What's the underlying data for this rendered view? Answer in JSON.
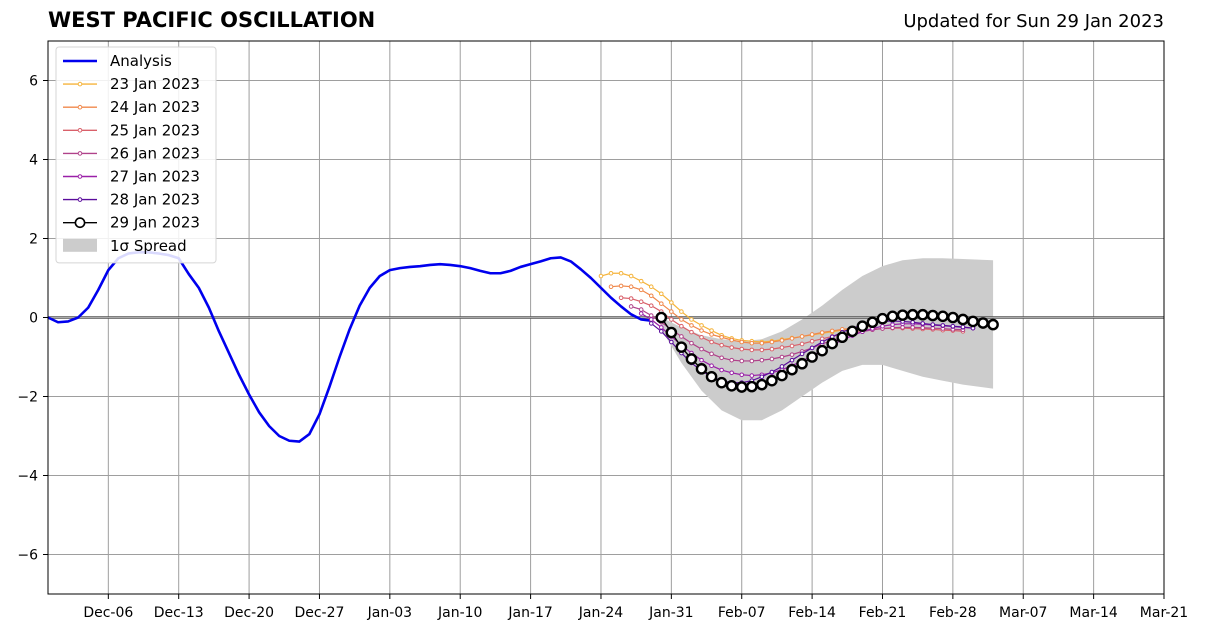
{
  "chart_data": {
    "type": "line",
    "title": "WEST PACIFIC OSCILLATION",
    "subtitle": "Updated for Sun 29 Jan 2023",
    "xlabel": "",
    "ylabel": "",
    "xlim": [
      "2022-11-30",
      "2023-03-21"
    ],
    "ylim": [
      -7,
      7
    ],
    "yticks": [
      -6,
      -4,
      -2,
      0,
      2,
      4,
      6
    ],
    "ytick_labels": [
      "−6",
      "−4",
      "−2",
      "0",
      "2",
      "4",
      "6"
    ],
    "xticks": [
      "2022-12-06",
      "2022-12-13",
      "2022-12-20",
      "2022-12-27",
      "2023-01-03",
      "2023-01-10",
      "2023-01-17",
      "2023-01-24",
      "2023-01-31",
      "2023-02-07",
      "2023-02-14",
      "2023-02-21",
      "2023-02-28",
      "2023-03-07",
      "2023-03-14",
      "2023-03-21"
    ],
    "xtick_labels": [
      "Dec-06",
      "Dec-13",
      "Dec-20",
      "Dec-27",
      "Jan-03",
      "Jan-10",
      "Jan-17",
      "Jan-24",
      "Jan-31",
      "Feb-07",
      "Feb-14",
      "Feb-21",
      "Feb-28",
      "Mar-07",
      "Mar-14",
      "Mar-21"
    ],
    "grid": true,
    "legend_position": "top-left",
    "zero_line": true,
    "series": [
      {
        "name": "Analysis",
        "color": "#0000ee",
        "style": "line-thick",
        "x": [
          "2022-11-30",
          "2022-12-01",
          "2022-12-02",
          "2022-12-03",
          "2022-12-04",
          "2022-12-05",
          "2022-12-06",
          "2022-12-07",
          "2022-12-08",
          "2022-12-09",
          "2022-12-10",
          "2022-12-11",
          "2022-12-12",
          "2022-12-13",
          "2022-12-14",
          "2022-12-15",
          "2022-12-16",
          "2022-12-17",
          "2022-12-18",
          "2022-12-19",
          "2022-12-20",
          "2022-12-21",
          "2022-12-22",
          "2022-12-23",
          "2022-12-24",
          "2022-12-25",
          "2022-12-26",
          "2022-12-27",
          "2022-12-28",
          "2022-12-29",
          "2022-12-30",
          "2022-12-31",
          "2023-01-01",
          "2023-01-02",
          "2023-01-03",
          "2023-01-04",
          "2023-01-05",
          "2023-01-06",
          "2023-01-07",
          "2023-01-08",
          "2023-01-09",
          "2023-01-10",
          "2023-01-11",
          "2023-01-12",
          "2023-01-13",
          "2023-01-14",
          "2023-01-15",
          "2023-01-16",
          "2023-01-17",
          "2023-01-18",
          "2023-01-19",
          "2023-01-20",
          "2023-01-21",
          "2023-01-22",
          "2023-01-23",
          "2023-01-24",
          "2023-01-25",
          "2023-01-26",
          "2023-01-27",
          "2023-01-28",
          "2023-01-29"
        ],
        "values": [
          0.0,
          -0.12,
          -0.1,
          0.0,
          0.25,
          0.7,
          1.2,
          1.5,
          1.62,
          1.65,
          1.65,
          1.62,
          1.58,
          1.5,
          1.1,
          0.75,
          0.25,
          -0.35,
          -0.9,
          -1.45,
          -1.95,
          -2.4,
          -2.75,
          -3.0,
          -3.12,
          -3.14,
          -2.95,
          -2.45,
          -1.75,
          -1.0,
          -0.3,
          0.3,
          0.75,
          1.05,
          1.2,
          1.25,
          1.28,
          1.3,
          1.33,
          1.35,
          1.33,
          1.3,
          1.25,
          1.18,
          1.12,
          1.12,
          1.18,
          1.28,
          1.35,
          1.42,
          1.5,
          1.52,
          1.42,
          1.22,
          1.0,
          0.75,
          0.5,
          0.28,
          0.08,
          -0.05,
          -0.08
        ]
      },
      {
        "name": "23 Jan 2023",
        "color": "#f5b43c",
        "style": "line-dots",
        "x": [
          "2023-01-24",
          "2023-01-25",
          "2023-01-26",
          "2023-01-27",
          "2023-01-28",
          "2023-01-29",
          "2023-01-30",
          "2023-01-31",
          "2023-02-01",
          "2023-02-02",
          "2023-02-03",
          "2023-02-04",
          "2023-02-05",
          "2023-02-06",
          "2023-02-07",
          "2023-02-08",
          "2023-02-09",
          "2023-02-10",
          "2023-02-11",
          "2023-02-12",
          "2023-02-13",
          "2023-02-14",
          "2023-02-15",
          "2023-02-16",
          "2023-02-17",
          "2023-02-18",
          "2023-02-19"
        ],
        "values": [
          1.05,
          1.12,
          1.12,
          1.05,
          0.92,
          0.78,
          0.6,
          0.38,
          0.15,
          -0.05,
          -0.2,
          -0.33,
          -0.45,
          -0.53,
          -0.58,
          -0.6,
          -0.62,
          -0.6,
          -0.56,
          -0.52,
          -0.48,
          -0.44,
          -0.4,
          -0.36,
          -0.32,
          -0.28,
          -0.25
        ]
      },
      {
        "name": "24 Jan 2023",
        "color": "#f0884b",
        "style": "line-dots",
        "x": [
          "2023-01-25",
          "2023-01-26",
          "2023-01-27",
          "2023-01-28",
          "2023-01-29",
          "2023-01-30",
          "2023-01-31",
          "2023-02-01",
          "2023-02-02",
          "2023-02-03",
          "2023-02-04",
          "2023-02-05",
          "2023-02-06",
          "2023-02-07",
          "2023-02-08",
          "2023-02-09",
          "2023-02-10",
          "2023-02-11",
          "2023-02-12",
          "2023-02-13",
          "2023-02-14",
          "2023-02-15",
          "2023-02-16",
          "2023-02-17",
          "2023-02-18",
          "2023-02-19",
          "2023-02-20"
        ],
        "values": [
          0.78,
          0.8,
          0.78,
          0.7,
          0.55,
          0.35,
          0.15,
          -0.05,
          -0.2,
          -0.33,
          -0.43,
          -0.5,
          -0.57,
          -0.62,
          -0.65,
          -0.65,
          -0.62,
          -0.58,
          -0.53,
          -0.48,
          -0.43,
          -0.38,
          -0.34,
          -0.3,
          -0.27,
          -0.24,
          -0.22
        ]
      },
      {
        "name": "25 Jan 2023",
        "color": "#d9606a",
        "style": "line-dots",
        "x": [
          "2023-01-26",
          "2023-01-27",
          "2023-01-28",
          "2023-01-29",
          "2023-01-30",
          "2023-01-31",
          "2023-02-01",
          "2023-02-02",
          "2023-02-03",
          "2023-02-04",
          "2023-02-05",
          "2023-02-06",
          "2023-02-07",
          "2023-02-08",
          "2023-02-09",
          "2023-02-10",
          "2023-02-11",
          "2023-02-12",
          "2023-02-13",
          "2023-02-14",
          "2023-02-15",
          "2023-02-16",
          "2023-02-17",
          "2023-02-18",
          "2023-02-19",
          "2023-02-20",
          "2023-02-21",
          "2023-02-22",
          "2023-02-23",
          "2023-02-24",
          "2023-02-25",
          "2023-02-26",
          "2023-02-27",
          "2023-02-28",
          "2023-03-01"
        ],
        "values": [
          0.5,
          0.48,
          0.4,
          0.3,
          0.15,
          -0.05,
          -0.22,
          -0.37,
          -0.5,
          -0.62,
          -0.7,
          -0.76,
          -0.8,
          -0.82,
          -0.82,
          -0.8,
          -0.76,
          -0.72,
          -0.67,
          -0.6,
          -0.54,
          -0.48,
          -0.42,
          -0.37,
          -0.33,
          -0.3,
          -0.28,
          -0.27,
          -0.27,
          -0.28,
          -0.29,
          -0.3,
          -0.32,
          -0.33,
          -0.35
        ]
      },
      {
        "name": "26 Jan 2023",
        "color": "#b0428a",
        "style": "line-dots",
        "x": [
          "2023-01-27",
          "2023-01-28",
          "2023-01-29",
          "2023-01-30",
          "2023-01-31",
          "2023-02-01",
          "2023-02-02",
          "2023-02-03",
          "2023-02-04",
          "2023-02-05",
          "2023-02-06",
          "2023-02-07",
          "2023-02-08",
          "2023-02-09",
          "2023-02-10",
          "2023-02-11",
          "2023-02-12",
          "2023-02-13",
          "2023-02-14",
          "2023-02-15",
          "2023-02-16",
          "2023-02-17",
          "2023-02-18",
          "2023-02-19",
          "2023-02-20",
          "2023-02-21",
          "2023-02-22",
          "2023-02-23",
          "2023-02-24",
          "2023-02-25",
          "2023-02-26",
          "2023-02-27",
          "2023-02-28",
          "2023-03-01"
        ],
        "values": [
          0.28,
          0.2,
          0.05,
          -0.12,
          -0.3,
          -0.48,
          -0.65,
          -0.8,
          -0.92,
          -1.02,
          -1.08,
          -1.1,
          -1.1,
          -1.08,
          -1.05,
          -1.0,
          -0.94,
          -0.86,
          -0.77,
          -0.67,
          -0.58,
          -0.5,
          -0.43,
          -0.36,
          -0.31,
          -0.28,
          -0.26,
          -0.25,
          -0.25,
          -0.26,
          -0.27,
          -0.28,
          -0.3,
          -0.31
        ]
      },
      {
        "name": "27 Jan 2023",
        "color": "#9a20a8",
        "style": "line-dots",
        "x": [
          "2023-01-28",
          "2023-01-29",
          "2023-01-30",
          "2023-01-31",
          "2023-02-01",
          "2023-02-02",
          "2023-02-03",
          "2023-02-04",
          "2023-02-05",
          "2023-02-06",
          "2023-02-07",
          "2023-02-08",
          "2023-02-09",
          "2023-02-10",
          "2023-02-11",
          "2023-02-12",
          "2023-02-13",
          "2023-02-14",
          "2023-02-15",
          "2023-02-16",
          "2023-02-17",
          "2023-02-18",
          "2023-02-19",
          "2023-02-20",
          "2023-02-21",
          "2023-02-22",
          "2023-02-23",
          "2023-02-24",
          "2023-02-25",
          "2023-02-26",
          "2023-02-27",
          "2023-02-28",
          "2023-03-01",
          "2023-03-02"
        ],
        "values": [
          0.1,
          -0.05,
          -0.25,
          -0.48,
          -0.7,
          -0.9,
          -1.08,
          -1.22,
          -1.33,
          -1.4,
          -1.45,
          -1.47,
          -1.45,
          -1.4,
          -1.32,
          -1.22,
          -1.1,
          -0.97,
          -0.83,
          -0.7,
          -0.57,
          -0.46,
          -0.36,
          -0.28,
          -0.22,
          -0.18,
          -0.16,
          -0.16,
          -0.17,
          -0.19,
          -0.21,
          -0.23,
          -0.25,
          -0.27
        ]
      },
      {
        "name": "28 Jan 2023",
        "color": "#5a0c9c",
        "style": "line-dots",
        "x": [
          "2023-01-29",
          "2023-01-30",
          "2023-01-31",
          "2023-02-01",
          "2023-02-02",
          "2023-02-03",
          "2023-02-04",
          "2023-02-05",
          "2023-02-06",
          "2023-02-07",
          "2023-02-08",
          "2023-02-09",
          "2023-02-10",
          "2023-02-11",
          "2023-02-12",
          "2023-02-13",
          "2023-02-14",
          "2023-02-15",
          "2023-02-16",
          "2023-02-17",
          "2023-02-18",
          "2023-02-19",
          "2023-02-20",
          "2023-02-21",
          "2023-02-22",
          "2023-02-23",
          "2023-02-24",
          "2023-02-25",
          "2023-02-26",
          "2023-02-27",
          "2023-02-28",
          "2023-03-01",
          "2023-03-02"
        ],
        "values": [
          -0.15,
          -0.35,
          -0.62,
          -0.9,
          -1.15,
          -1.35,
          -1.5,
          -1.6,
          -1.65,
          -1.65,
          -1.6,
          -1.5,
          -1.38,
          -1.24,
          -1.08,
          -0.92,
          -0.77,
          -0.62,
          -0.49,
          -0.37,
          -0.27,
          -0.19,
          -0.13,
          -0.1,
          -0.09,
          -0.1,
          -0.12,
          -0.15,
          -0.18,
          -0.2,
          -0.22,
          -0.24,
          -0.27
        ]
      },
      {
        "name": "29 Jan 2023",
        "color": "#000000",
        "style": "line-open-circles",
        "x": [
          "2023-01-30",
          "2023-01-31",
          "2023-02-01",
          "2023-02-02",
          "2023-02-03",
          "2023-02-04",
          "2023-02-05",
          "2023-02-06",
          "2023-02-07",
          "2023-02-08",
          "2023-02-09",
          "2023-02-10",
          "2023-02-11",
          "2023-02-12",
          "2023-02-13",
          "2023-02-14",
          "2023-02-15",
          "2023-02-16",
          "2023-02-17",
          "2023-02-18",
          "2023-02-19",
          "2023-02-20",
          "2023-02-21",
          "2023-02-22",
          "2023-02-23",
          "2023-02-24",
          "2023-02-25",
          "2023-02-26",
          "2023-02-27",
          "2023-02-28",
          "2023-03-01",
          "2023-03-02",
          "2023-03-03",
          "2023-03-04"
        ],
        "values": [
          0.0,
          -0.38,
          -0.75,
          -1.05,
          -1.3,
          -1.5,
          -1.65,
          -1.73,
          -1.76,
          -1.75,
          -1.7,
          -1.6,
          -1.47,
          -1.32,
          -1.17,
          -1.0,
          -0.84,
          -0.66,
          -0.5,
          -0.35,
          -0.22,
          -0.12,
          -0.03,
          0.03,
          0.06,
          0.07,
          0.07,
          0.05,
          0.03,
          0.0,
          -0.05,
          -0.1,
          -0.14,
          -0.18
        ]
      }
    ],
    "spread": {
      "name": "1σ Spread",
      "color": "#cccccc",
      "x": [
        "2023-01-30",
        "2023-02-01",
        "2023-02-03",
        "2023-02-05",
        "2023-02-07",
        "2023-02-09",
        "2023-02-11",
        "2023-02-13",
        "2023-02-15",
        "2023-02-17",
        "2023-02-19",
        "2023-02-21",
        "2023-02-23",
        "2023-02-25",
        "2023-02-27",
        "2023-03-01",
        "2023-03-04"
      ],
      "upper": [
        0.0,
        -0.25,
        -0.45,
        -0.55,
        -0.6,
        -0.55,
        -0.35,
        -0.05,
        0.3,
        0.7,
        1.05,
        1.3,
        1.45,
        1.5,
        1.5,
        1.48,
        1.45
      ],
      "lower": [
        -0.3,
        -1.15,
        -1.85,
        -2.35,
        -2.6,
        -2.6,
        -2.35,
        -2.0,
        -1.65,
        -1.35,
        -1.2,
        -1.2,
        -1.35,
        -1.5,
        -1.6,
        -1.7,
        -1.8
      ]
    }
  }
}
